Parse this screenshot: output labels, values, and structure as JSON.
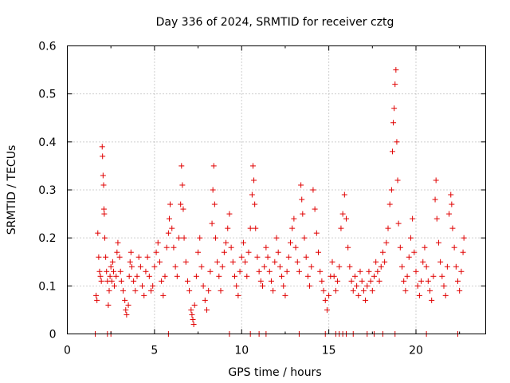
{
  "chart_data": {
    "type": "scatter",
    "title": "Day 336 of 2024, SRMTID for receiver cztg",
    "xlabel": "GPS time / hours",
    "ylabel": "SRMTID / TECUs",
    "xlim": [
      0,
      24
    ],
    "ylim": [
      0,
      0.6
    ],
    "x_ticks": [
      0,
      5,
      10,
      15,
      20
    ],
    "x_tick_labels": [
      "0",
      "5",
      "10",
      "15",
      "20"
    ],
    "y_ticks": [
      0,
      0.1,
      0.2,
      0.3,
      0.4,
      0.5,
      0.6
    ],
    "y_tick_labels": [
      "0",
      "0.1",
      "0.2",
      "0.3",
      "0.4",
      "0.5",
      "0.6"
    ],
    "grid": true,
    "marker": "+",
    "color": "#e00000",
    "series": [
      {
        "name": "SRMTID",
        "points": [
          [
            1.6,
            0.0
          ],
          [
            1.65,
            0.08
          ],
          [
            1.7,
            0.07
          ],
          [
            1.75,
            0.21
          ],
          [
            1.8,
            0.16
          ],
          [
            1.85,
            0.13
          ],
          [
            1.9,
            0.12
          ],
          [
            1.95,
            0.11
          ],
          [
            2.0,
            0.39
          ],
          [
            2.02,
            0.37
          ],
          [
            2.05,
            0.33
          ],
          [
            2.08,
            0.31
          ],
          [
            2.1,
            0.26
          ],
          [
            2.12,
            0.25
          ],
          [
            2.15,
            0.2
          ],
          [
            2.2,
            0.16
          ],
          [
            2.25,
            0.13
          ],
          [
            2.3,
            0.11
          ],
          [
            2.35,
            0.06
          ],
          [
            2.4,
            0.09
          ],
          [
            2.45,
            0.12
          ],
          [
            2.5,
            0.14
          ],
          [
            2.55,
            0.11
          ],
          [
            2.6,
            0.15
          ],
          [
            2.65,
            0.13
          ],
          [
            2.7,
            0.1
          ],
          [
            2.8,
            0.12
          ],
          [
            2.85,
            0.17
          ],
          [
            2.9,
            0.19
          ],
          [
            3.0,
            0.16
          ],
          [
            3.05,
            0.13
          ],
          [
            3.1,
            0.11
          ],
          [
            3.2,
            0.09
          ],
          [
            3.3,
            0.07
          ],
          [
            3.35,
            0.05
          ],
          [
            3.4,
            0.04
          ],
          [
            3.5,
            0.06
          ],
          [
            3.55,
            0.12
          ],
          [
            3.6,
            0.15
          ],
          [
            3.65,
            0.17
          ],
          [
            3.7,
            0.14
          ],
          [
            3.8,
            0.11
          ],
          [
            3.9,
            0.09
          ],
          [
            4.0,
            0.12
          ],
          [
            4.1,
            0.16
          ],
          [
            4.2,
            0.14
          ],
          [
            4.3,
            0.1
          ],
          [
            4.4,
            0.08
          ],
          [
            4.5,
            0.13
          ],
          [
            4.6,
            0.16
          ],
          [
            4.7,
            0.12
          ],
          [
            4.8,
            0.09
          ],
          [
            4.9,
            0.1
          ],
          [
            5.0,
            0.14
          ],
          [
            5.1,
            0.17
          ],
          [
            5.2,
            0.19
          ],
          [
            5.3,
            0.15
          ],
          [
            5.4,
            0.11
          ],
          [
            5.5,
            0.08
          ],
          [
            5.6,
            0.12
          ],
          [
            5.7,
            0.18
          ],
          [
            5.8,
            0.21
          ],
          [
            5.85,
            0.24
          ],
          [
            5.9,
            0.27
          ],
          [
            6.0,
            0.22
          ],
          [
            6.1,
            0.18
          ],
          [
            6.2,
            0.14
          ],
          [
            6.3,
            0.12
          ],
          [
            6.4,
            0.2
          ],
          [
            6.5,
            0.27
          ],
          [
            6.55,
            0.35
          ],
          [
            6.6,
            0.31
          ],
          [
            6.65,
            0.26
          ],
          [
            6.7,
            0.2
          ],
          [
            6.8,
            0.15
          ],
          [
            6.9,
            0.11
          ],
          [
            7.0,
            0.09
          ],
          [
            7.1,
            0.05
          ],
          [
            7.15,
            0.04
          ],
          [
            7.2,
            0.03
          ],
          [
            7.25,
            0.02
          ],
          [
            7.3,
            0.06
          ],
          [
            7.4,
            0.12
          ],
          [
            7.5,
            0.17
          ],
          [
            7.6,
            0.2
          ],
          [
            7.7,
            0.14
          ],
          [
            7.8,
            0.1
          ],
          [
            7.9,
            0.07
          ],
          [
            8.0,
            0.05
          ],
          [
            8.1,
            0.09
          ],
          [
            8.2,
            0.13
          ],
          [
            8.3,
            0.23
          ],
          [
            8.35,
            0.3
          ],
          [
            8.4,
            0.35
          ],
          [
            8.45,
            0.27
          ],
          [
            8.5,
            0.2
          ],
          [
            8.6,
            0.15
          ],
          [
            8.7,
            0.12
          ],
          [
            8.8,
            0.09
          ],
          [
            8.9,
            0.14
          ],
          [
            9.0,
            0.17
          ],
          [
            9.1,
            0.19
          ],
          [
            9.2,
            0.22
          ],
          [
            9.3,
            0.25
          ],
          [
            9.4,
            0.18
          ],
          [
            9.5,
            0.15
          ],
          [
            9.6,
            0.12
          ],
          [
            9.7,
            0.1
          ],
          [
            9.8,
            0.08
          ],
          [
            9.9,
            0.13
          ],
          [
            10.0,
            0.16
          ],
          [
            10.1,
            0.19
          ],
          [
            10.2,
            0.15
          ],
          [
            10.3,
            0.12
          ],
          [
            10.4,
            0.17
          ],
          [
            10.5,
            0.22
          ],
          [
            10.6,
            0.29
          ],
          [
            10.65,
            0.35
          ],
          [
            10.7,
            0.32
          ],
          [
            10.75,
            0.27
          ],
          [
            10.8,
            0.22
          ],
          [
            10.9,
            0.16
          ],
          [
            11.0,
            0.13
          ],
          [
            11.1,
            0.11
          ],
          [
            11.2,
            0.1
          ],
          [
            11.3,
            0.14
          ],
          [
            11.4,
            0.18
          ],
          [
            11.5,
            0.16
          ],
          [
            11.6,
            0.13
          ],
          [
            11.7,
            0.11
          ],
          [
            11.8,
            0.09
          ],
          [
            11.9,
            0.15
          ],
          [
            12.0,
            0.2
          ],
          [
            12.1,
            0.17
          ],
          [
            12.2,
            0.14
          ],
          [
            12.3,
            0.12
          ],
          [
            12.4,
            0.1
          ],
          [
            12.5,
            0.08
          ],
          [
            12.6,
            0.13
          ],
          [
            12.7,
            0.16
          ],
          [
            12.8,
            0.19
          ],
          [
            12.9,
            0.22
          ],
          [
            13.0,
            0.24
          ],
          [
            13.1,
            0.18
          ],
          [
            13.2,
            0.15
          ],
          [
            13.3,
            0.13
          ],
          [
            13.4,
            0.31
          ],
          [
            13.45,
            0.28
          ],
          [
            13.5,
            0.25
          ],
          [
            13.6,
            0.2
          ],
          [
            13.7,
            0.16
          ],
          [
            13.8,
            0.12
          ],
          [
            13.9,
            0.1
          ],
          [
            14.0,
            0.14
          ],
          [
            14.1,
            0.3
          ],
          [
            14.2,
            0.26
          ],
          [
            14.3,
            0.21
          ],
          [
            14.4,
            0.17
          ],
          [
            14.5,
            0.13
          ],
          [
            14.6,
            0.11
          ],
          [
            14.7,
            0.09
          ],
          [
            14.8,
            0.07
          ],
          [
            14.9,
            0.05
          ],
          [
            15.0,
            0.08
          ],
          [
            15.1,
            0.12
          ],
          [
            15.2,
            0.15
          ],
          [
            15.3,
            0.12
          ],
          [
            15.4,
            0.09
          ],
          [
            15.5,
            0.11
          ],
          [
            15.6,
            0.14
          ],
          [
            15.7,
            0.22
          ],
          [
            15.8,
            0.25
          ],
          [
            15.9,
            0.29
          ],
          [
            16.0,
            0.24
          ],
          [
            16.1,
            0.18
          ],
          [
            16.2,
            0.14
          ],
          [
            16.3,
            0.11
          ],
          [
            16.4,
            0.09
          ],
          [
            16.5,
            0.12
          ],
          [
            16.6,
            0.1
          ],
          [
            16.7,
            0.08
          ],
          [
            16.8,
            0.13
          ],
          [
            16.9,
            0.11
          ],
          [
            17.0,
            0.09
          ],
          [
            17.1,
            0.07
          ],
          [
            17.2,
            0.1
          ],
          [
            17.3,
            0.13
          ],
          [
            17.4,
            0.11
          ],
          [
            17.5,
            0.09
          ],
          [
            17.6,
            0.12
          ],
          [
            17.7,
            0.15
          ],
          [
            17.8,
            0.13
          ],
          [
            17.9,
            0.11
          ],
          [
            18.0,
            0.14
          ],
          [
            18.1,
            0.17
          ],
          [
            18.2,
            0.15
          ],
          [
            18.3,
            0.19
          ],
          [
            18.4,
            0.22
          ],
          [
            18.5,
            0.27
          ],
          [
            18.6,
            0.3
          ],
          [
            18.65,
            0.38
          ],
          [
            18.7,
            0.44
          ],
          [
            18.75,
            0.47
          ],
          [
            18.8,
            0.52
          ],
          [
            18.85,
            0.55
          ],
          [
            18.9,
            0.4
          ],
          [
            18.95,
            0.32
          ],
          [
            19.0,
            0.23
          ],
          [
            19.1,
            0.18
          ],
          [
            19.2,
            0.14
          ],
          [
            19.3,
            0.11
          ],
          [
            19.4,
            0.09
          ],
          [
            19.5,
            0.12
          ],
          [
            19.6,
            0.16
          ],
          [
            19.7,
            0.2
          ],
          [
            19.8,
            0.24
          ],
          [
            19.9,
            0.17
          ],
          [
            20.0,
            0.13
          ],
          [
            20.1,
            0.1
          ],
          [
            20.2,
            0.08
          ],
          [
            20.3,
            0.11
          ],
          [
            20.4,
            0.15
          ],
          [
            20.5,
            0.18
          ],
          [
            20.6,
            0.14
          ],
          [
            20.7,
            0.11
          ],
          [
            20.8,
            0.09
          ],
          [
            20.9,
            0.07
          ],
          [
            21.0,
            0.12
          ],
          [
            21.1,
            0.28
          ],
          [
            21.15,
            0.32
          ],
          [
            21.2,
            0.24
          ],
          [
            21.3,
            0.19
          ],
          [
            21.4,
            0.15
          ],
          [
            21.5,
            0.12
          ],
          [
            21.6,
            0.1
          ],
          [
            21.7,
            0.08
          ],
          [
            21.8,
            0.14
          ],
          [
            21.9,
            0.25
          ],
          [
            22.0,
            0.29
          ],
          [
            22.05,
            0.27
          ],
          [
            22.1,
            0.22
          ],
          [
            22.2,
            0.18
          ],
          [
            22.3,
            0.14
          ],
          [
            22.4,
            0.11
          ],
          [
            22.5,
            0.09
          ],
          [
            22.6,
            0.13
          ],
          [
            22.7,
            0.17
          ],
          [
            22.75,
            0.2
          ],
          [
            2.3,
            0.0
          ],
          [
            2.5,
            0.0
          ],
          [
            5.8,
            0.0
          ],
          [
            9.3,
            0.0
          ],
          [
            10.5,
            0.0
          ],
          [
            11.0,
            0.0
          ],
          [
            11.4,
            0.0
          ],
          [
            13.3,
            0.0
          ],
          [
            14.8,
            0.0
          ],
          [
            15.4,
            0.0
          ],
          [
            15.6,
            0.0
          ],
          [
            15.8,
            0.0
          ],
          [
            16.0,
            0.0
          ],
          [
            16.4,
            0.0
          ],
          [
            17.2,
            0.0
          ],
          [
            17.6,
            0.0
          ],
          [
            18.1,
            0.0
          ],
          [
            18.8,
            0.0
          ],
          [
            20.6,
            0.0
          ],
          [
            22.4,
            0.0
          ]
        ]
      }
    ]
  }
}
